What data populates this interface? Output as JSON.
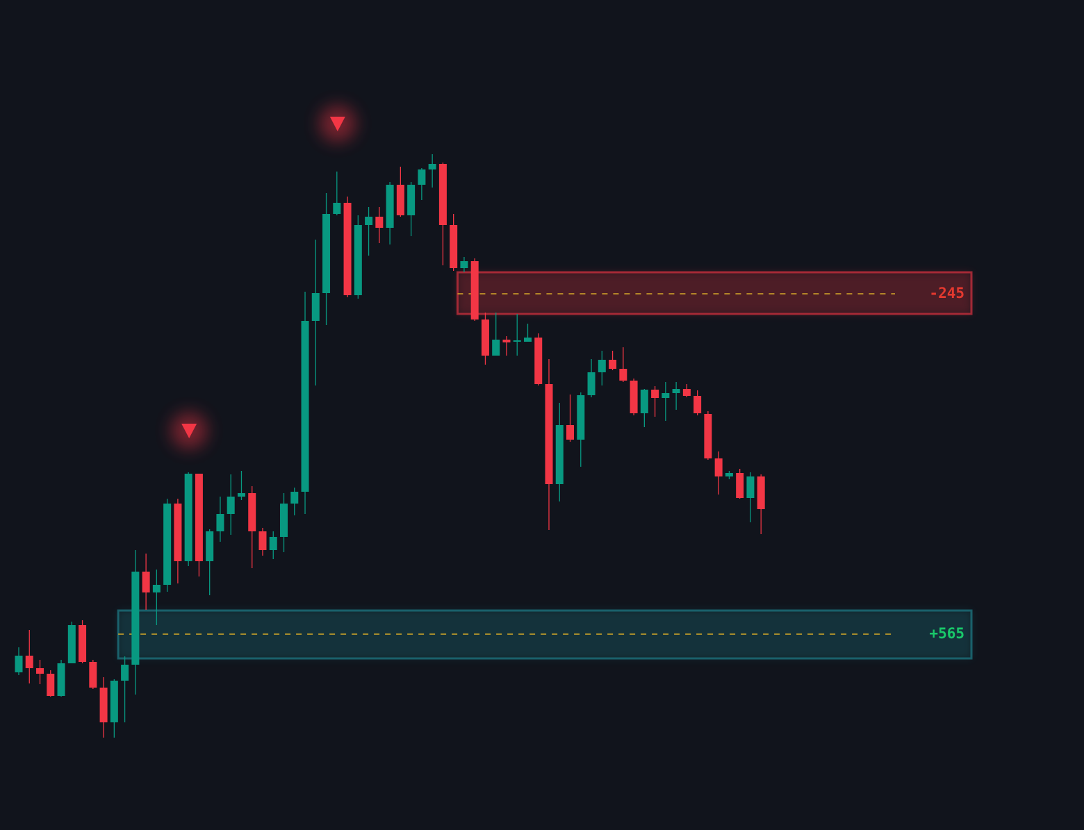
{
  "chart_data": {
    "type": "candlestick",
    "open": [
      227,
      251,
      233,
      225,
      193,
      240,
      295,
      242,
      205,
      155,
      215,
      238,
      372,
      342,
      353,
      470,
      387,
      513,
      387,
      430,
      455,
      480,
      485,
      430,
      403,
      422,
      470,
      487,
      733,
      773,
      887,
      903,
      770,
      871,
      883,
      867,
      929,
      885,
      929,
      951,
      959,
      871,
      809,
      819,
      735,
      683,
      706,
      703,
      703,
      709,
      642,
      498,
      583,
      562,
      626,
      659,
      677,
      664,
      647,
      600,
      634,
      622,
      629,
      635,
      625,
      599,
      535,
      509,
      514,
      478,
      509
    ],
    "high": [
      263,
      288,
      245,
      230,
      245,
      300,
      302,
      245,
      220,
      217,
      250,
      403,
      398,
      375,
      477,
      477,
      515,
      513,
      433,
      480,
      512,
      517,
      495,
      435,
      430,
      485,
      493,
      775,
      850,
      917,
      948,
      912,
      885,
      897,
      897,
      933,
      955,
      933,
      953,
      973,
      961,
      887,
      825,
      823,
      745,
      745,
      711,
      743,
      729,
      715,
      678,
      615,
      627,
      630,
      678,
      690,
      690,
      695,
      650,
      635,
      639,
      645,
      645,
      642,
      633,
      603,
      545,
      517,
      520,
      515,
      512
    ],
    "low": [
      223,
      211,
      210,
      192,
      192,
      240,
      240,
      203,
      133,
      133,
      155,
      195,
      317,
      295,
      343,
      355,
      380,
      365,
      338,
      415,
      425,
      475,
      377,
      395,
      390,
      400,
      453,
      455,
      640,
      727,
      885,
      767,
      765,
      827,
      845,
      843,
      883,
      855,
      907,
      925,
      813,
      805,
      803,
      733,
      670,
      683,
      683,
      683,
      703,
      640,
      432,
      473,
      559,
      523,
      623,
      640,
      662,
      645,
      597,
      580,
      595,
      589,
      605,
      623,
      597,
      533,
      483,
      505,
      477,
      443,
      426
    ],
    "close": [
      251,
      233,
      225,
      193,
      240,
      295,
      242,
      205,
      155,
      215,
      238,
      372,
      342,
      353,
      470,
      387,
      513,
      387,
      430,
      455,
      480,
      485,
      430,
      403,
      422,
      470,
      487,
      733,
      773,
      887,
      903,
      770,
      871,
      883,
      867,
      929,
      885,
      929,
      951,
      959,
      871,
      809,
      819,
      735,
      683,
      706,
      702,
      705,
      709,
      642,
      498,
      583,
      562,
      626,
      659,
      677,
      664,
      647,
      600,
      634,
      622,
      629,
      635,
      625,
      600,
      535,
      509,
      514,
      478,
      509,
      462
    ],
    "up_color": "#089981",
    "down_color": "#f23645",
    "ylim": [
      0,
      1195
    ],
    "zones": [
      {
        "label": "-245",
        "top": 803,
        "bottom": 743,
        "level": 772,
        "start_index": 42,
        "color": "#f23645",
        "label_color": "#e5392f"
      },
      {
        "label": "+565",
        "top": 316,
        "bottom": 247,
        "level": 282,
        "start_index": 10,
        "color": "#1f8a96",
        "label_color": "#19c96a"
      }
    ],
    "signals": [
      {
        "index": 16,
        "value": 575,
        "color": "#f23645"
      },
      {
        "index": 30,
        "value": 1017,
        "color": "#f23645"
      }
    ]
  }
}
